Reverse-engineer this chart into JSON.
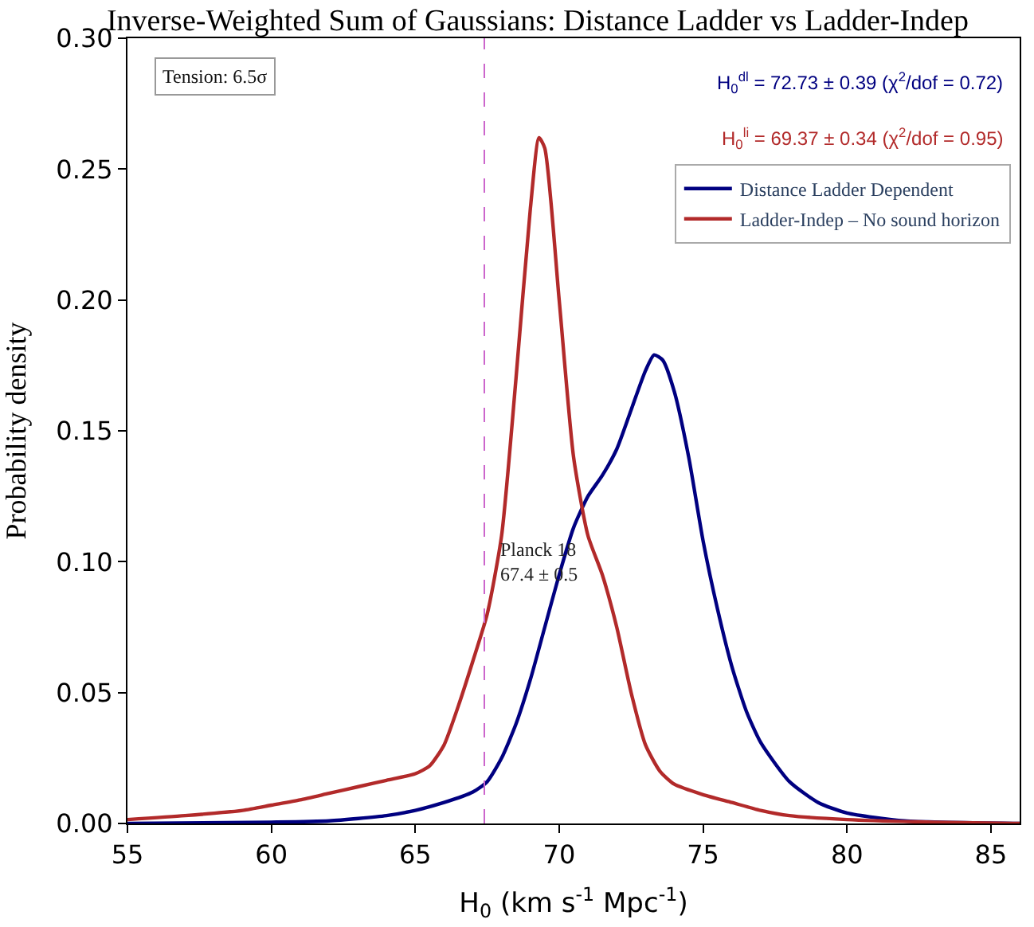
{
  "chart_data": {
    "type": "line",
    "title": "Inverse-Weighted Sum of Gaussians: Distance Ladder vs Ladder-Indep",
    "xlabel": "H$_{0}$ (km s$^{-1}$ Mpc$^{-1}$)",
    "ylabel": "Probability density",
    "series": [
      {
        "name": "Distance Ladder Dependent",
        "color": "#000080",
        "x": [
          55,
          60,
          62,
          64,
          65,
          66,
          67,
          67.5,
          68,
          68.5,
          69,
          69.5,
          70,
          70.5,
          71,
          71.5,
          72,
          72.5,
          73,
          73.3,
          73.6,
          74,
          74.5,
          75,
          75.5,
          76,
          76.5,
          77,
          78,
          79,
          80,
          82,
          86
        ],
        "values": [
          0,
          0.0005,
          0.001,
          0.003,
          0.005,
          0.008,
          0.012,
          0.016,
          0.025,
          0.038,
          0.055,
          0.075,
          0.095,
          0.113,
          0.125,
          0.133,
          0.143,
          0.158,
          0.173,
          0.179,
          0.177,
          0.165,
          0.14,
          0.108,
          0.082,
          0.06,
          0.043,
          0.031,
          0.016,
          0.008,
          0.004,
          0.001,
          0
        ]
      },
      {
        "name": "Ladder-Indep – No sound horizon",
        "color": "#b22a2a",
        "x": [
          55,
          57,
          59,
          60,
          61,
          62,
          63,
          64,
          65,
          65.5,
          66,
          66.5,
          67,
          67.5,
          68,
          68.5,
          69,
          69.3,
          69.5,
          70,
          70.5,
          71,
          71.5,
          72,
          72.5,
          73,
          73.5,
          74,
          75,
          76,
          77,
          78,
          80,
          83,
          86
        ],
        "values": [
          0.0015,
          0.003,
          0.005,
          0.007,
          0.009,
          0.0115,
          0.014,
          0.0165,
          0.019,
          0.022,
          0.03,
          0.045,
          0.062,
          0.08,
          0.11,
          0.17,
          0.235,
          0.262,
          0.258,
          0.2,
          0.14,
          0.11,
          0.095,
          0.075,
          0.05,
          0.03,
          0.02,
          0.015,
          0.011,
          0.008,
          0.005,
          0.003,
          0.0015,
          0.0005,
          0
        ]
      }
    ],
    "xlim": [
      55,
      86
    ],
    "xticks": [
      55,
      60,
      65,
      70,
      75,
      80,
      85
    ],
    "ylim": [
      0,
      0.3
    ],
    "yticks": [
      {
        "value": 0,
        "label": "0.00"
      },
      {
        "value": 0.05,
        "label": "0.05"
      },
      {
        "value": 0.1,
        "label": "0.10"
      },
      {
        "value": 0.15,
        "label": "0.15"
      },
      {
        "value": 0.2,
        "label": "0.20"
      },
      {
        "value": 0.25,
        "label": "0.25"
      },
      {
        "value": 0.3,
        "label": "0.30"
      }
    ],
    "ref_lines": [
      {
        "axis": "x",
        "value": 67.4,
        "label": "Planck 18\n67.4 ± 0.5",
        "color": "#cc66cc",
        "line_style": "dashed"
      }
    ],
    "annotations": [
      "Tension: 6.5σ",
      "H$_{0}$$^{dl}$ = 72.73 ± 0.39 (χ$^{2}$/dof = 0.72)",
      "H$_{0}$$^{li}$ = 69.37 ± 0.34 (χ$^{2}$/dof = 0.95)"
    ],
    "legend": "top right",
    "marker": "none",
    "line_style": "solid"
  }
}
